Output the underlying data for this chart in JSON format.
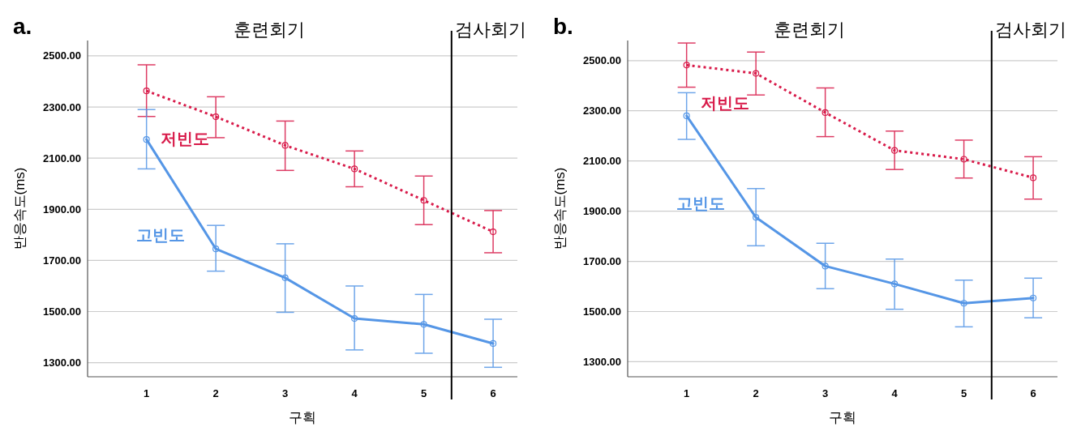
{
  "chart_data": [
    {
      "type": "line",
      "title": "a.",
      "xlabel": "구획",
      "ylabel": "반응속도(ms)",
      "x": [
        1,
        2,
        3,
        4,
        5,
        6
      ],
      "xlim": [
        0.15,
        6.35
      ],
      "xticks": [
        1,
        2,
        3,
        4,
        5,
        6
      ],
      "ylim": [
        1245,
        2560
      ],
      "yticks": [
        {
          "value": 1300,
          "label": "1300.00"
        },
        {
          "value": 1500,
          "label": "1500.00"
        },
        {
          "value": 1700,
          "label": "1700.00"
        },
        {
          "value": 1900,
          "label": "1900.00"
        },
        {
          "value": 2100,
          "label": "2100.00"
        },
        {
          "value": 2300,
          "label": "2300.00"
        },
        {
          "value": 2500,
          "label": "2500.00"
        }
      ],
      "grid": "y",
      "marker": "circle",
      "series": [
        {
          "name": "저빈도",
          "color": "#d81b4a",
          "line_style": "dotted",
          "values": [
            2363,
            2262,
            2150,
            2058,
            1935,
            1812
          ],
          "errors": [
            [
              2263,
              2465
            ],
            [
              2180,
              2340
            ],
            [
              2052,
              2245
            ],
            [
              1988,
              2128
            ],
            [
              1840,
              2030
            ],
            [
              1730,
              1895
            ]
          ]
        },
        {
          "name": "고빈도",
          "color": "#5596e6",
          "line_style": "solid",
          "values": [
            2173,
            1745,
            1632,
            1473,
            1450,
            1375
          ],
          "errors": [
            [
              2058,
              2290
            ],
            [
              1658,
              1837
            ],
            [
              1497,
              1765
            ],
            [
              1350,
              1600
            ],
            [
              1337,
              1567
            ],
            [
              1282,
              1470
            ]
          ]
        }
      ],
      "ref_lines": [
        {
          "axis": "x",
          "value": 5.4,
          "color": "#000000"
        }
      ],
      "annotations": [
        "훈련회기",
        "검사회기"
      ]
    },
    {
      "type": "line",
      "title": "b.",
      "xlabel": "구획",
      "ylabel": "반응속도(ms)",
      "x": [
        1,
        2,
        3,
        4,
        5,
        6
      ],
      "xlim": [
        0.15,
        6.35
      ],
      "xticks": [
        1,
        2,
        3,
        4,
        5,
        6
      ],
      "ylim": [
        1240,
        2580
      ],
      "yticks": [
        {
          "value": 1300,
          "label": "1300.00"
        },
        {
          "value": 1500,
          "label": "1500.00"
        },
        {
          "value": 1700,
          "label": "1700.00"
        },
        {
          "value": 1900,
          "label": "1900.00"
        },
        {
          "value": 2100,
          "label": "2100.00"
        },
        {
          "value": 2300,
          "label": "2300.00"
        },
        {
          "value": 2500,
          "label": "2500.00"
        }
      ],
      "grid": "y",
      "marker": "circle",
      "series": [
        {
          "name": "저빈도",
          "color": "#d81b4a",
          "line_style": "dotted",
          "values": [
            2482,
            2449,
            2293,
            2142,
            2107,
            2033
          ],
          "errors": [
            [
              2394,
              2570
            ],
            [
              2363,
              2534
            ],
            [
              2197,
              2391
            ],
            [
              2066,
              2219
            ],
            [
              2032,
              2183
            ],
            [
              1948,
              2117
            ]
          ]
        },
        {
          "name": "고빈도",
          "color": "#5596e6",
          "line_style": "solid",
          "values": [
            2280,
            1875,
            1681,
            1610,
            1533,
            1554
          ],
          "errors": [
            [
              2186,
              2372
            ],
            [
              1762,
              1990
            ],
            [
              1591,
              1772
            ],
            [
              1509,
              1709
            ],
            [
              1439,
              1625
            ],
            [
              1475,
              1633
            ]
          ]
        }
      ],
      "ref_lines": [
        {
          "axis": "x",
          "value": 5.4,
          "color": "#000000"
        }
      ],
      "annotations": [
        "훈련회기",
        "검사회기"
      ]
    }
  ]
}
